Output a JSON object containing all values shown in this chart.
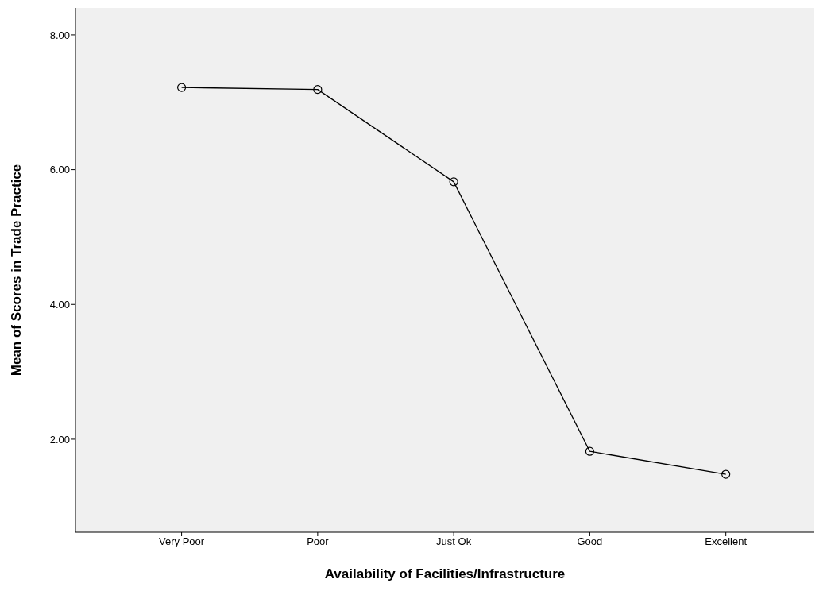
{
  "chart_data": {
    "type": "line",
    "xlabel": "Availability of Facilities/Infrastructure",
    "ylabel": "Mean of Scores in Trade Practice",
    "categories": [
      "Very Poor",
      "Poor",
      "Just Ok",
      "Good",
      "Excellent"
    ],
    "series": [
      {
        "color": "#000000",
        "values": [
          7.22,
          7.19,
          5.82,
          1.82,
          1.48
        ]
      }
    ],
    "ylim": [
      0.62,
      8.4
    ],
    "yticks": [
      {
        "value": 2,
        "label": "2.00"
      },
      {
        "value": 4,
        "label": "4.00"
      },
      {
        "value": 6,
        "label": "6.00"
      },
      {
        "value": 8,
        "label": "8.00"
      }
    ],
    "grid": false,
    "legend": false,
    "marker": "circle",
    "line_style": "solid"
  }
}
